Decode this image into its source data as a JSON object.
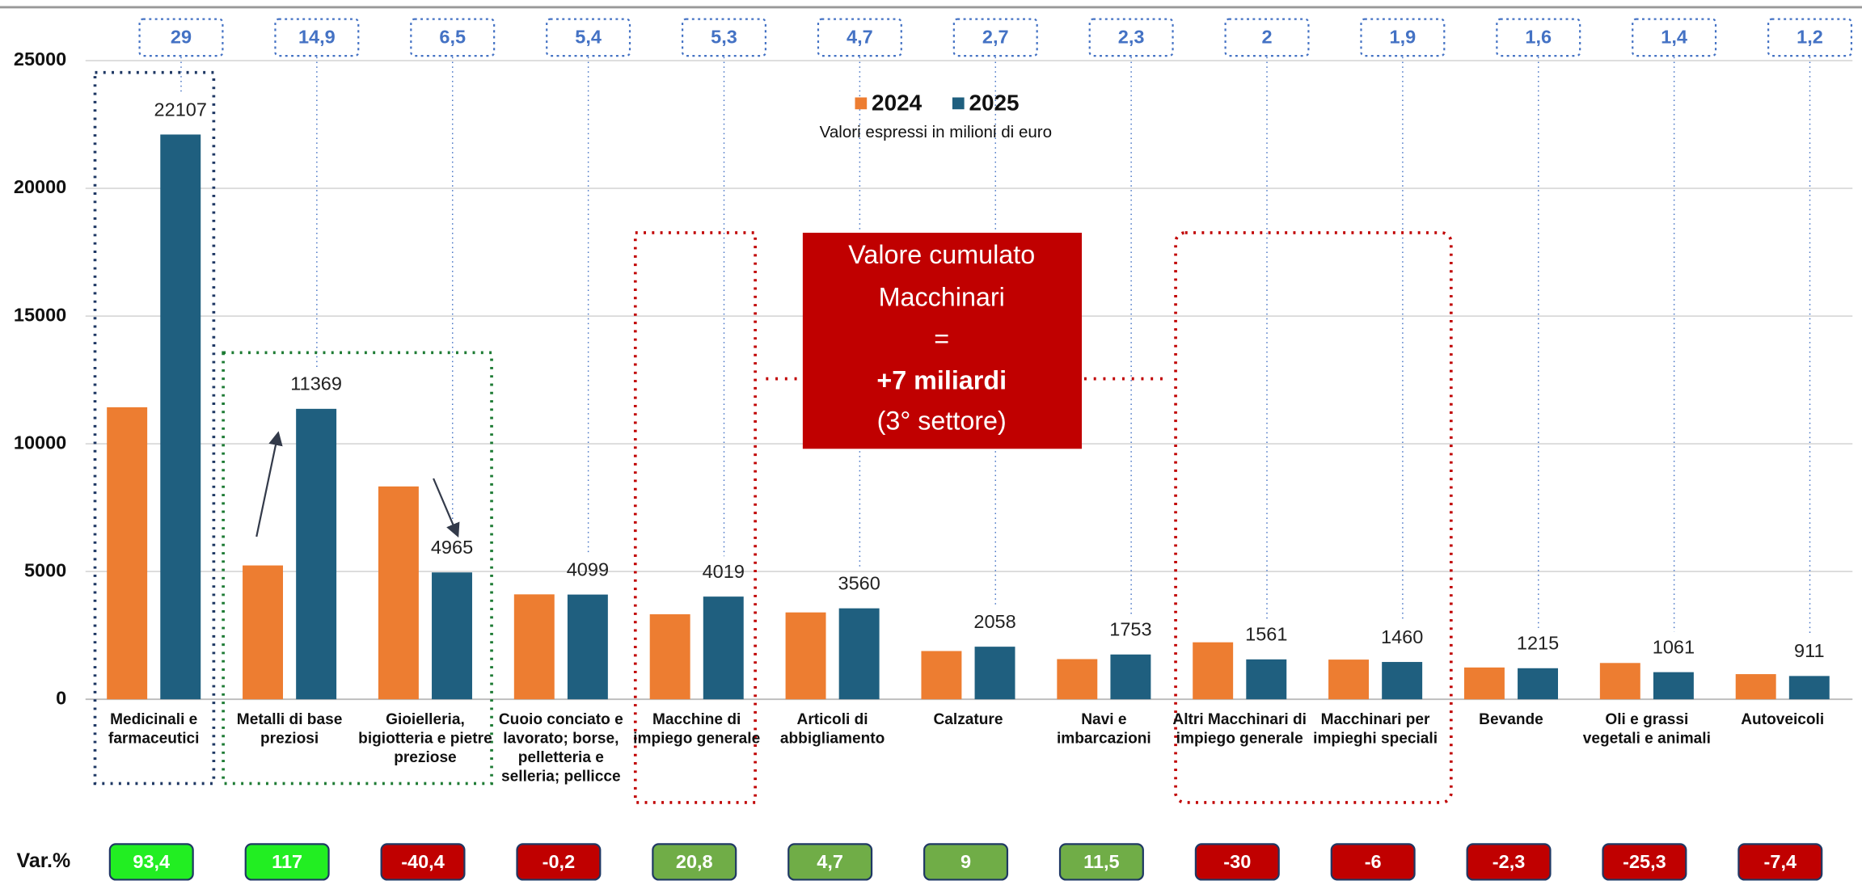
{
  "chart_data": {
    "type": "bar",
    "subtitle": "Valori espressi in milioni di euro",
    "categories": [
      "Medicinali e farmaceutici",
      "Metalli di base preziosi",
      "Gioielleria, bigiotteria e pietre preziose",
      "Cuoio conciato e lavorato; borse, pelletteria e selleria; pellicce",
      "Macchine di impiego generale",
      "Articoli di abbigliamento",
      "Calzature",
      "Navi e imbarcazioni",
      "Altri Macchinari di impiego generale",
      "Macchinari per impieghi speciali",
      "Bevande",
      "Oli e grassi vegetali e animali",
      "Autoveicoli"
    ],
    "series": [
      {
        "name": "2024",
        "color": "#ed7d31",
        "values": [
          11431,
          5239,
          8331,
          4107,
          3327,
          3400,
          1888,
          1572,
          2230,
          1553,
          1244,
          1420,
          984
        ]
      },
      {
        "name": "2025",
        "color": "#1f5f7f",
        "values": [
          22107,
          11369,
          4965,
          4099,
          4019,
          3560,
          2058,
          1753,
          1561,
          1460,
          1215,
          1061,
          911
        ]
      }
    ],
    "ylim": [
      0,
      25000
    ],
    "yticks": [
      0,
      5000,
      10000,
      15000,
      20000,
      25000
    ],
    "grid": true,
    "top_boxes": {
      "values": [
        29,
        14.9,
        6.5,
        5.4,
        5.3,
        4.7,
        2.7,
        2.3,
        2,
        1.9,
        1.6,
        1.4,
        1.2
      ],
      "value_labels": [
        "29",
        "14,9",
        "6,5",
        "5,4",
        "5,3",
        "4,7",
        "2,7",
        "2,3",
        "2",
        "1,9",
        "1,6",
        "1,4",
        "1,2"
      ]
    },
    "var_pct": {
      "label": "Var.%",
      "values": [
        93.4,
        117,
        -40.4,
        -0.2,
        20.8,
        4.7,
        9,
        11.5,
        -30,
        -6,
        -2.3,
        -25.3,
        -7.4
      ],
      "value_labels": [
        "93,4",
        "117",
        "-40,4",
        "-0,2",
        "20,8",
        "4,7",
        "9",
        "11,5",
        "-30",
        "-6",
        "-2,3",
        "-25,3",
        "-7,4"
      ],
      "colors": [
        "#22ee22",
        "#22ee22",
        "#c00000",
        "#c00000",
        "#70ad47",
        "#70ad47",
        "#70ad47",
        "#70ad47",
        "#c00000",
        "#c00000",
        "#c00000",
        "#c00000",
        "#c00000"
      ]
    },
    "annotation": [
      "Valore cumulato",
      "Macchinari",
      "=",
      "+7 miliardi",
      "(3° settore)"
    ]
  }
}
